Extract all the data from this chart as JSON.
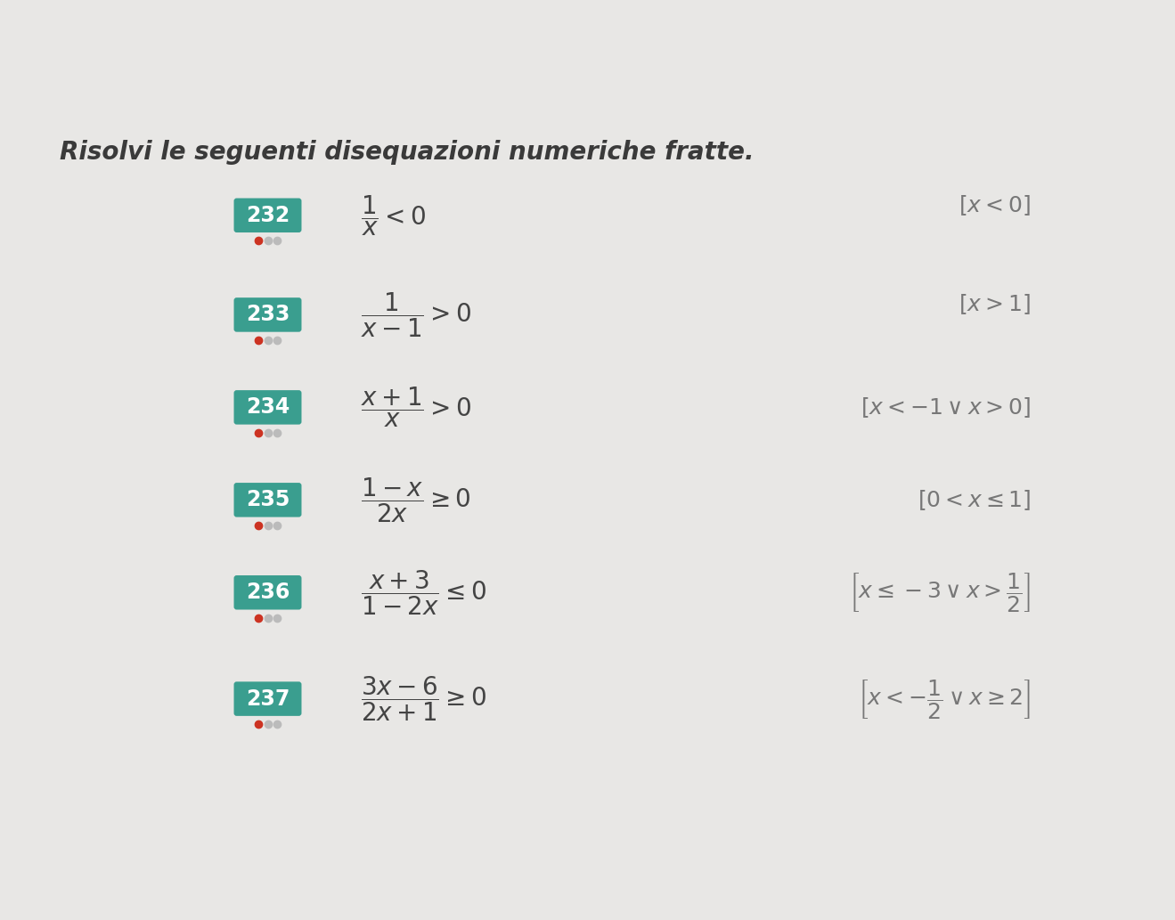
{
  "title": "Risolvi le seguenti disequazioni numeriche fratte.",
  "bg_color": "#e8e7e5",
  "exercises": [
    {
      "number": "232",
      "label_color": "#3a9e8f",
      "dots": 1,
      "inequality_latex": "$\\dfrac{1}{x} < 0$",
      "solution_latex": "$[x < 0]$",
      "sol_x_frac": false
    },
    {
      "number": "233",
      "label_color": "#3a9e8f",
      "dots": 1,
      "inequality_latex": "$\\dfrac{1}{x-1} > 0$",
      "solution_latex": "$[x > 1]$",
      "sol_x_frac": false
    },
    {
      "number": "234",
      "label_color": "#3a9e8f",
      "dots": 1,
      "inequality_latex": "$\\dfrac{x+1}{x} > 0$",
      "solution_latex": "$[x < -1 \\vee x > 0]$",
      "sol_x_frac": false
    },
    {
      "number": "235",
      "label_color": "#3a9e8f",
      "dots": 1,
      "inequality_latex": "$\\dfrac{1-x}{2x} \\geq 0$",
      "solution_latex": "$[0 < x \\leq 1]$",
      "sol_x_frac": false
    },
    {
      "number": "236",
      "label_color": "#3a9e8f",
      "dots": 1,
      "inequality_latex": "$\\dfrac{x+3}{1-2x} \\leq 0$",
      "solution_latex": "$\\left[x \\leq -3 \\vee x > \\dfrac{1}{2}\\right]$",
      "sol_x_frac": true
    },
    {
      "number": "237",
      "label_color": "#3a9e8f",
      "dots": 1,
      "inequality_latex": "$\\dfrac{3x-6}{2x+1} \\geq 0$",
      "solution_latex": "$\\left[x < -\\dfrac{1}{2} \\vee x \\geq 2\\right]$",
      "sol_x_frac": true
    }
  ],
  "title_fontsize": 20,
  "number_fontsize": 17,
  "math_fontsize": 20,
  "solution_fontsize": 18,
  "dot_color_filled": "#cc3322",
  "dot_color_empty": "#bbbbbb",
  "text_color": "#444444",
  "solution_color": "#777777"
}
